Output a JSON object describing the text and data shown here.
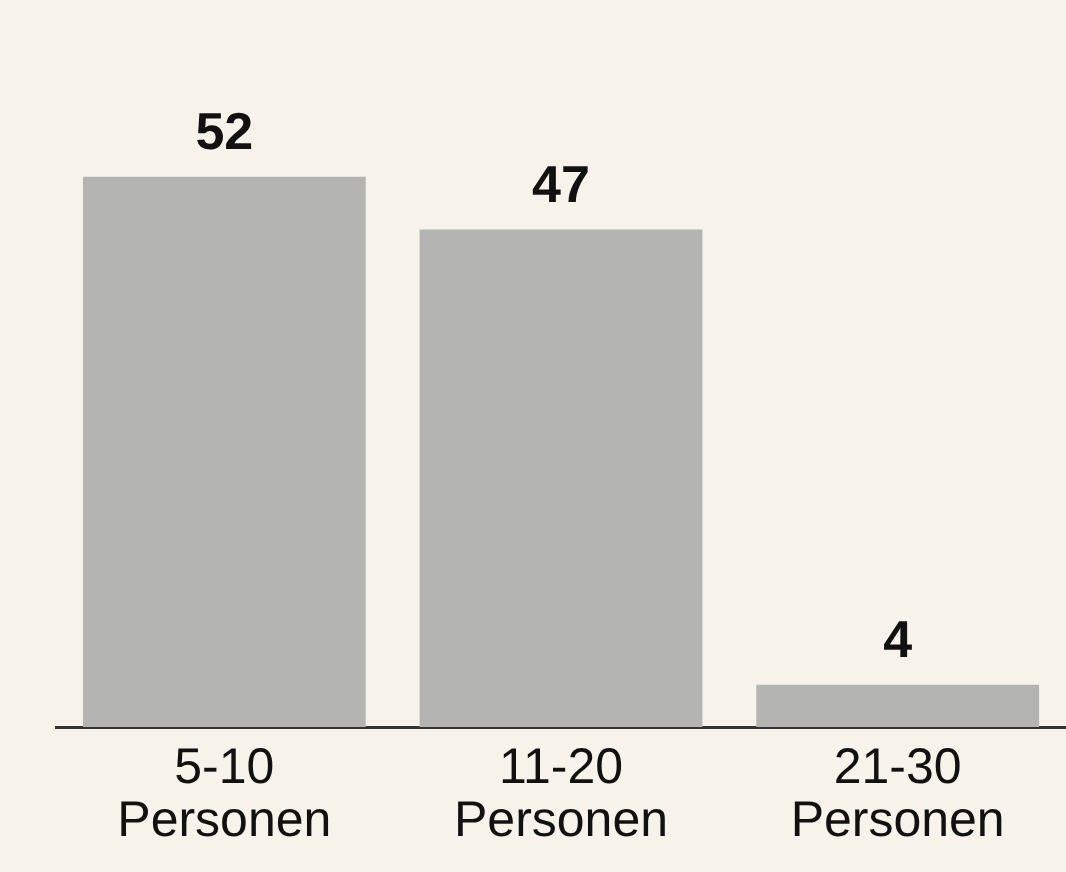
{
  "chart_data": {
    "type": "bar",
    "categories": [
      "5-10 Personen",
      "11-20 Personen",
      "21-30 Personen"
    ],
    "values": [
      52,
      47,
      4
    ],
    "color": "#b4b4b2",
    "data_labels": true,
    "grid": false,
    "legend": false
  }
}
